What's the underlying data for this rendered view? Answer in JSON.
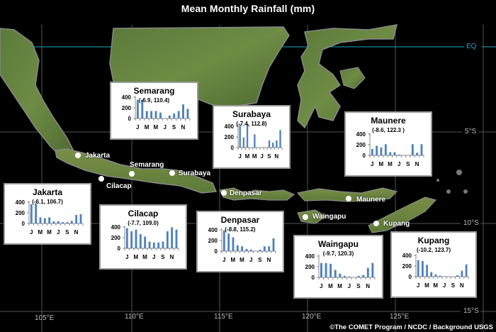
{
  "title": "Mean Monthly Rainfall (mm)",
  "credit": "©The COMET Program / NCDC / Background USGS",
  "colors": {
    "bar": "#4f81bd",
    "equator": "#1aa6c4",
    "grid": "#777777",
    "background": "#000000"
  },
  "axes": {
    "longitude_labels": [
      "105°E",
      "110°E",
      "115°E",
      "120°E",
      "125°E"
    ],
    "latitude_labels": [
      "EQ",
      "5°S",
      "10°S",
      "15°S"
    ]
  },
  "cities": [
    {
      "name": "Jakarta"
    },
    {
      "name": "Cilacap"
    },
    {
      "name": "Semarang"
    },
    {
      "name": "Surabaya"
    },
    {
      "name": "Denpasar"
    },
    {
      "name": "Maunere"
    },
    {
      "name": "Waingapu"
    },
    {
      "name": "Kupang"
    }
  ],
  "chart_data": [
    {
      "type": "bar",
      "title": "Semarang",
      "subtitle": "(-6.9, 110.4)",
      "categories": [
        "J",
        "F",
        "M",
        "A",
        "M",
        "J",
        "J",
        "A",
        "S",
        "O",
        "N",
        "D"
      ],
      "tick_labels": [
        "J",
        "M",
        "M",
        "J",
        "S",
        "N"
      ],
      "values": [
        350,
        350,
        140,
        140,
        140,
        110,
        0,
        55,
        95,
        140,
        265,
        180
      ],
      "ylim": [
        0,
        400
      ],
      "yticks": [
        0,
        200,
        400
      ]
    },
    {
      "type": "bar",
      "title": "Surabaya",
      "subtitle": "(-7.4, 112.8)",
      "categories": [
        "J",
        "F",
        "M",
        "A",
        "M",
        "J",
        "J",
        "A",
        "S",
        "O",
        "N",
        "D"
      ],
      "tick_labels": [
        "J",
        "M",
        "M",
        "J",
        "S",
        "N"
      ],
      "values": [
        430,
        190,
        450,
        0,
        250,
        0,
        0,
        0,
        135,
        90,
        135,
        330
      ],
      "ylim": [
        0,
        400
      ],
      "yticks": [
        0,
        200,
        400
      ]
    },
    {
      "type": "bar",
      "title": "Maunere",
      "subtitle": "(-8.6, 122.3 )",
      "categories": [
        "J",
        "F",
        "M",
        "A",
        "M",
        "J",
        "J",
        "A",
        "S",
        "O",
        "N",
        "D"
      ],
      "tick_labels": [
        "J",
        "M",
        "M",
        "J",
        "S",
        "N"
      ],
      "values": [
        120,
        180,
        150,
        210,
        60,
        60,
        15,
        0,
        0,
        210,
        50,
        210
      ],
      "ylim": [
        0,
        400
      ],
      "yticks": [
        0,
        200,
        400
      ]
    },
    {
      "type": "bar",
      "title": "Jakarta",
      "subtitle": "(-6.1, 106.7)",
      "categories": [
        "J",
        "F",
        "M",
        "A",
        "M",
        "J",
        "J",
        "A",
        "S",
        "O",
        "N",
        "D"
      ],
      "tick_labels": [
        "J",
        "M",
        "M",
        "J",
        "S",
        "N"
      ],
      "values": [
        360,
        375,
        115,
        100,
        115,
        40,
        40,
        25,
        25,
        50,
        160,
        175
      ],
      "ylim": [
        0,
        400
      ],
      "yticks": [
        0,
        200,
        400
      ]
    },
    {
      "type": "bar",
      "title": "Cilacap",
      "subtitle": "(-7.7, 109.0)",
      "categories": [
        "J",
        "F",
        "M",
        "A",
        "M",
        "J",
        "J",
        "A",
        "S",
        "O",
        "N",
        "D"
      ],
      "tick_labels": [
        "J",
        "M",
        "M",
        "J",
        "S",
        "N"
      ],
      "values": [
        380,
        320,
        350,
        265,
        220,
        125,
        110,
        110,
        125,
        320,
        395,
        350
      ],
      "ylim": [
        0,
        400
      ],
      "yticks": [
        0,
        200,
        400
      ]
    },
    {
      "type": "bar",
      "title": "Denpasar",
      "subtitle": "(-8.8, 115.2)",
      "categories": [
        "J",
        "F",
        "M",
        "A",
        "M",
        "J",
        "J",
        "A",
        "S",
        "O",
        "N",
        "D"
      ],
      "tick_labels": [
        "J",
        "M",
        "M",
        "J",
        "S",
        "N"
      ],
      "values": [
        390,
        330,
        260,
        110,
        90,
        40,
        30,
        0,
        25,
        90,
        90,
        240
      ],
      "ylim": [
        0,
        400
      ],
      "yticks": [
        0,
        200,
        400
      ]
    },
    {
      "type": "bar",
      "title": "Waingapu",
      "subtitle": "(-9.7, 120.3)",
      "categories": [
        "J",
        "F",
        "M",
        "A",
        "M",
        "J",
        "J",
        "A",
        "S",
        "O",
        "N",
        "D"
      ],
      "tick_labels": [
        "J",
        "M",
        "M",
        "J",
        "S",
        "N"
      ],
      "values": [
        270,
        270,
        255,
        140,
        70,
        30,
        15,
        0,
        30,
        45,
        180,
        270
      ],
      "ylim": [
        0,
        400
      ],
      "yticks": [
        0,
        200,
        400
      ]
    },
    {
      "type": "bar",
      "title": "Kupang",
      "subtitle": "(-10.2, 123.7)",
      "categories": [
        "J",
        "F",
        "M",
        "A",
        "M",
        "J",
        "J",
        "A",
        "S",
        "O",
        "N",
        "D"
      ],
      "tick_labels": [
        "J",
        "M",
        "M",
        "J",
        "S",
        "N"
      ],
      "values": [
        310,
        295,
        220,
        85,
        45,
        20,
        0,
        0,
        0,
        30,
        110,
        230
      ],
      "ylim": [
        0,
        400
      ],
      "yticks": [
        0,
        200,
        400
      ]
    }
  ]
}
